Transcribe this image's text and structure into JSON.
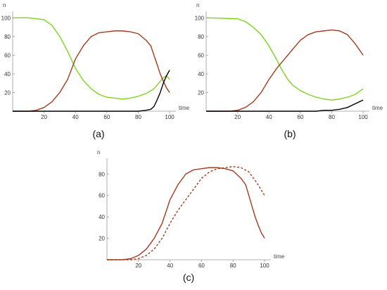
{
  "chart_data": [
    {
      "type": "line",
      "panel_label": "(a)",
      "xlabel": "time",
      "ylabel": "n",
      "xlim": [
        0,
        104
      ],
      "ylim": [
        0,
        104
      ],
      "xticks": [
        20,
        40,
        60,
        80,
        100
      ],
      "yticks": [
        20,
        40,
        60,
        80,
        100
      ],
      "colors": [
        "#7ed321",
        "#a33b20",
        "#000000"
      ],
      "series": [
        {
          "color": "#7ed321",
          "style": "solid",
          "x": [
            0,
            10,
            20,
            25,
            30,
            35,
            40,
            45,
            50,
            55,
            60,
            65,
            70,
            75,
            80,
            85,
            90,
            93,
            96,
            98,
            100
          ],
          "y": [
            100,
            100,
            98,
            92,
            80,
            64,
            46,
            33,
            24,
            18,
            15,
            14,
            13,
            14,
            16,
            19,
            24,
            30,
            36,
            38,
            34
          ]
        },
        {
          "color": "#a33b20",
          "style": "solid",
          "x": [
            0,
            10,
            15,
            20,
            25,
            30,
            35,
            40,
            45,
            50,
            55,
            60,
            65,
            70,
            75,
            80,
            85,
            88,
            90,
            92,
            94,
            96,
            98,
            100
          ],
          "y": [
            0,
            0,
            1,
            4,
            10,
            20,
            34,
            56,
            70,
            80,
            84,
            85,
            86,
            86,
            85,
            83,
            76,
            70,
            60,
            50,
            40,
            32,
            25,
            20
          ]
        },
        {
          "color": "#000000",
          "style": "solid",
          "x": [
            0,
            70,
            80,
            85,
            88,
            90,
            92,
            94,
            96,
            98,
            100
          ],
          "y": [
            0,
            0,
            0,
            1,
            2,
            5,
            12,
            20,
            30,
            38,
            44
          ]
        }
      ]
    },
    {
      "type": "line",
      "panel_label": "(b)",
      "xlabel": "time",
      "ylabel": "n",
      "xlim": [
        0,
        104
      ],
      "ylim": [
        0,
        104
      ],
      "xticks": [
        20,
        40,
        60,
        80,
        100
      ],
      "yticks": [
        20,
        40,
        60,
        80,
        100
      ],
      "colors": [
        "#7ed321",
        "#a33b20",
        "#000000"
      ],
      "series": [
        {
          "color": "#7ed321",
          "style": "solid",
          "x": [
            0,
            20,
            25,
            30,
            35,
            40,
            45,
            48,
            52,
            55,
            60,
            65,
            70,
            75,
            80,
            85,
            90,
            95,
            100
          ],
          "y": [
            100,
            99,
            96,
            90,
            82,
            70,
            55,
            45,
            34,
            28,
            22,
            18,
            15,
            13,
            12,
            13,
            15,
            18,
            24
          ]
        },
        {
          "color": "#a33b20",
          "style": "solid",
          "x": [
            0,
            15,
            20,
            25,
            30,
            35,
            40,
            45,
            50,
            55,
            60,
            65,
            70,
            75,
            80,
            85,
            90,
            95,
            100
          ],
          "y": [
            0,
            0,
            1,
            4,
            10,
            20,
            34,
            46,
            56,
            66,
            76,
            82,
            85,
            86,
            87,
            86,
            82,
            72,
            60
          ]
        },
        {
          "color": "#000000",
          "style": "solid",
          "x": [
            0,
            70,
            75,
            80,
            85,
            90,
            95,
            100
          ],
          "y": [
            0,
            0,
            1,
            1,
            2,
            4,
            8,
            12
          ]
        }
      ]
    },
    {
      "type": "line",
      "panel_label": "(c)",
      "xlabel": "time",
      "ylabel": "n",
      "xlim": [
        0,
        104
      ],
      "ylim": [
        0,
        92
      ],
      "xticks": [
        20,
        40,
        60,
        80,
        100
      ],
      "yticks": [
        20,
        40,
        60,
        80
      ],
      "colors": [
        "#a33b20",
        "#a33b20"
      ],
      "series": [
        {
          "color": "#a33b20",
          "style": "solid",
          "x": [
            0,
            10,
            15,
            20,
            25,
            30,
            35,
            40,
            45,
            50,
            55,
            60,
            65,
            70,
            75,
            80,
            85,
            88,
            90,
            92,
            94,
            96,
            98,
            100
          ],
          "y": [
            0,
            0,
            1,
            4,
            10,
            20,
            34,
            56,
            70,
            80,
            84,
            85,
            86,
            86,
            85,
            83,
            76,
            70,
            60,
            50,
            40,
            32,
            25,
            20
          ]
        },
        {
          "color": "#a33b20",
          "style": "dashed",
          "x": [
            0,
            15,
            20,
            25,
            30,
            35,
            40,
            45,
            50,
            55,
            60,
            65,
            70,
            75,
            80,
            85,
            90,
            95,
            100
          ],
          "y": [
            0,
            0,
            1,
            4,
            10,
            20,
            34,
            46,
            56,
            66,
            76,
            82,
            85,
            86,
            87,
            86,
            82,
            72,
            60
          ]
        }
      ]
    }
  ]
}
